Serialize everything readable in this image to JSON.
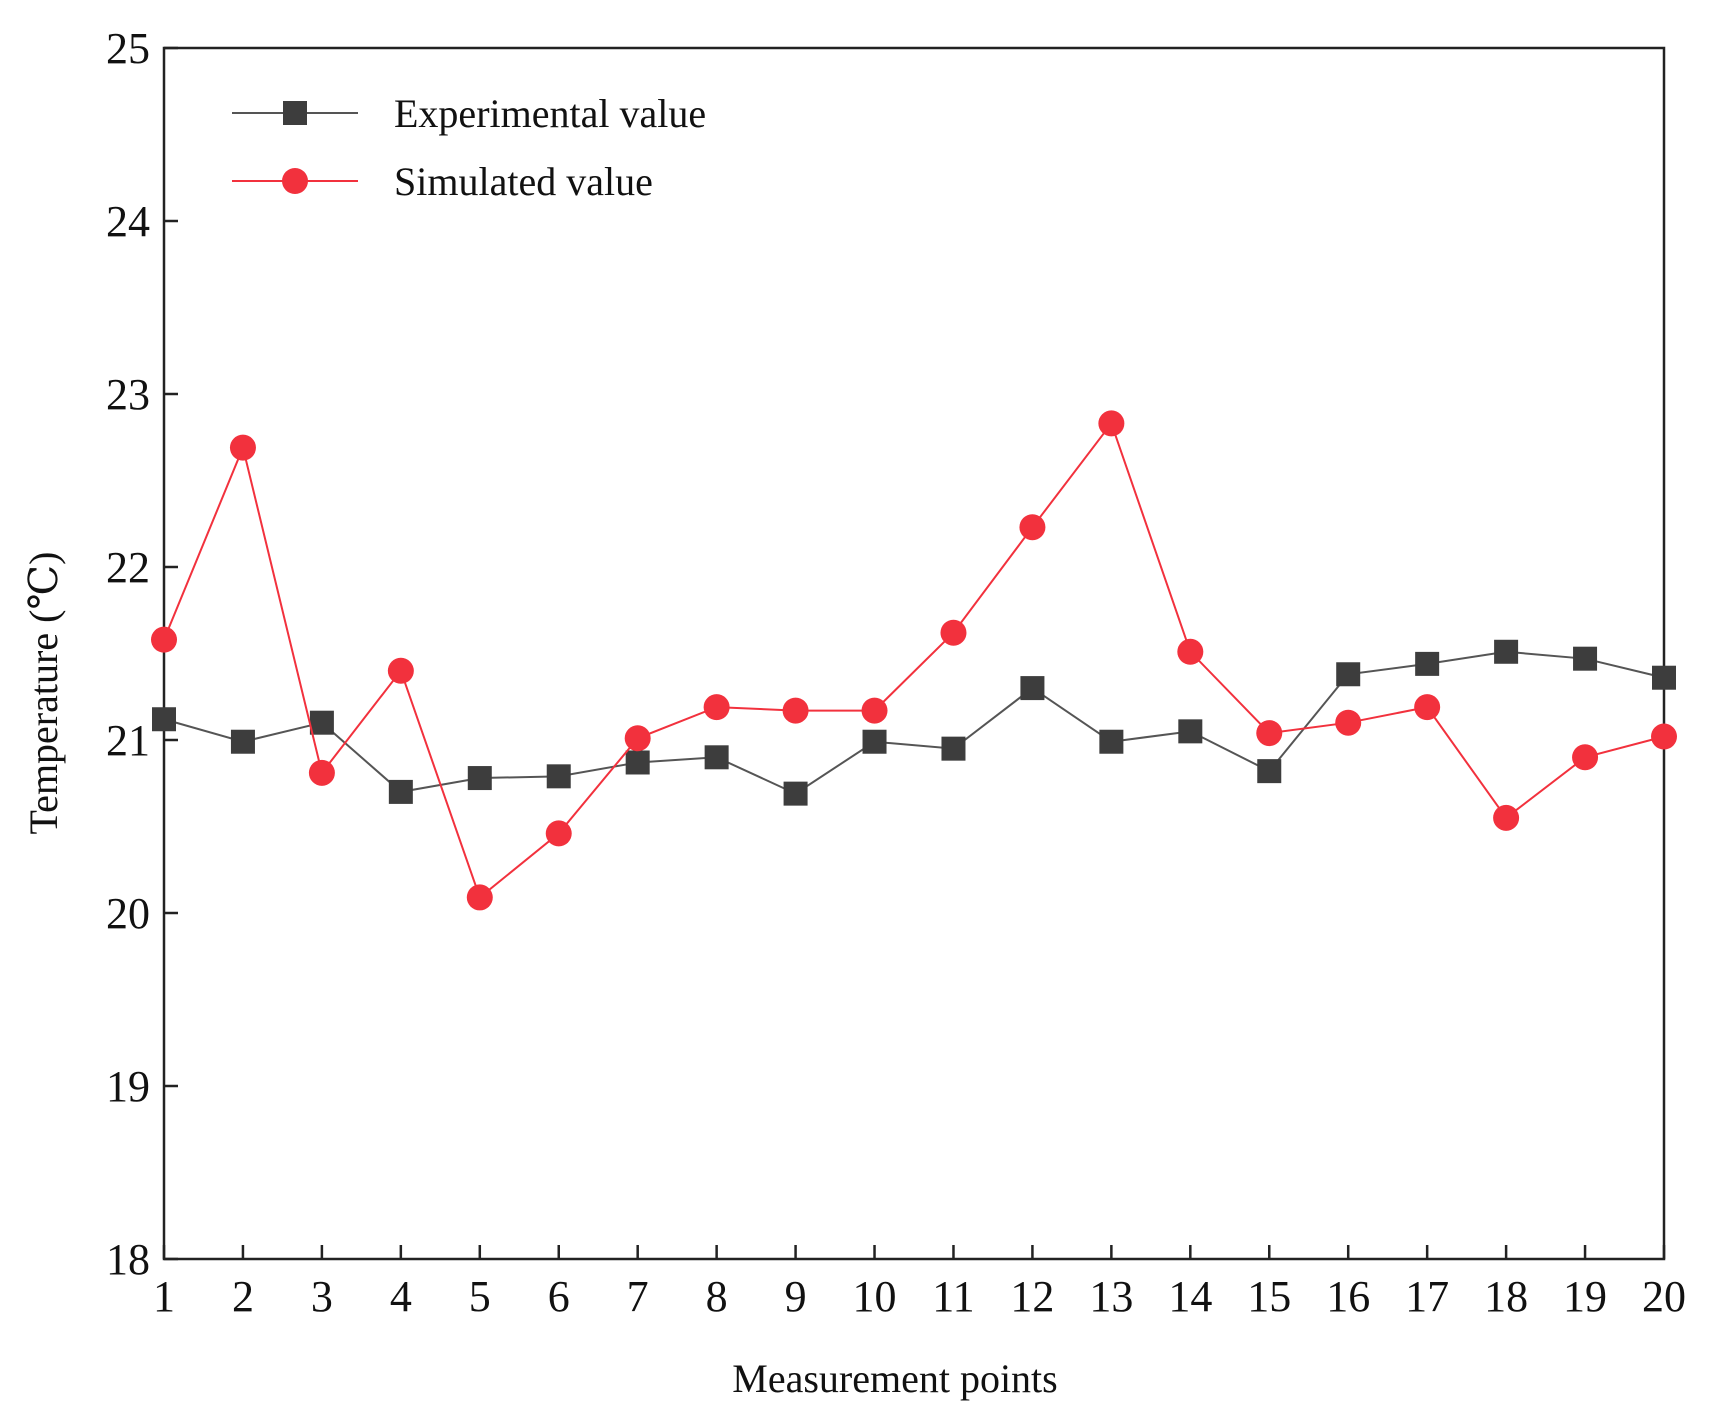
{
  "chart_data": {
    "type": "line",
    "title": "",
    "xlabel": "Measurement points",
    "ylabel": "Temperature (℃)",
    "xlim": [
      1,
      20
    ],
    "ylim": [
      18,
      25
    ],
    "x": [
      1,
      2,
      3,
      4,
      5,
      6,
      7,
      8,
      9,
      10,
      11,
      12,
      13,
      14,
      15,
      16,
      17,
      18,
      19,
      20
    ],
    "x_ticks": [
      "1",
      "2",
      "3",
      "4",
      "5",
      "6",
      "7",
      "8",
      "9",
      "10",
      "11",
      "12",
      "13",
      "14",
      "15",
      "16",
      "17",
      "18",
      "19",
      "20"
    ],
    "y_ticks": [
      "18",
      "19",
      "20",
      "21",
      "22",
      "23",
      "24",
      "25"
    ],
    "grid": false,
    "legend_position": "top-left",
    "series": [
      {
        "name": "Experimental value",
        "marker": "square",
        "color": "#3d3d3d",
        "line_color": "#555555",
        "values": [
          21.12,
          20.99,
          21.1,
          20.7,
          20.78,
          20.79,
          20.87,
          20.9,
          20.69,
          20.99,
          20.95,
          21.3,
          20.99,
          21.05,
          20.82,
          21.38,
          21.44,
          21.51,
          21.47,
          21.36
        ]
      },
      {
        "name": "Simulated value",
        "marker": "circle",
        "color": "#f2313d",
        "line_color": "#f2313d",
        "values": [
          21.58,
          22.69,
          20.81,
          21.4,
          20.09,
          20.46,
          21.01,
          21.19,
          21.17,
          21.17,
          21.62,
          22.23,
          22.83,
          21.51,
          21.04,
          21.1,
          21.19,
          20.55,
          20.9,
          21.02
        ]
      }
    ]
  }
}
